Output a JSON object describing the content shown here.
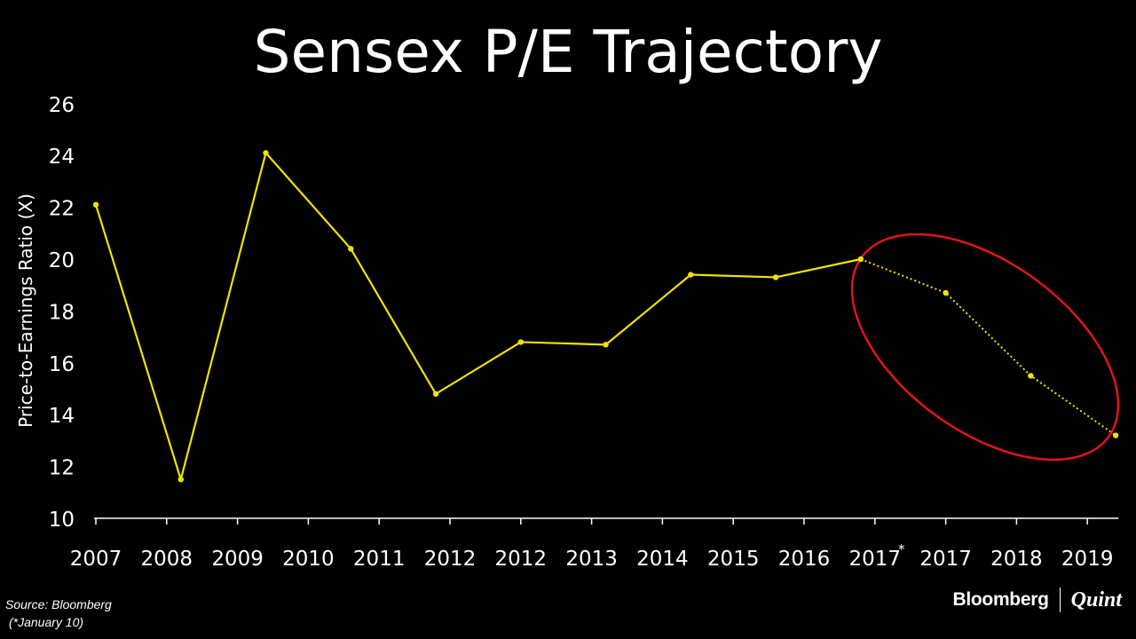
{
  "colors": {
    "background": "#000000",
    "text": "#ffffff",
    "line": "#f2e300",
    "highlight_ellipse": "#e0141c",
    "axis": "#ffffff"
  },
  "chart_data": {
    "type": "line",
    "title": "Sensex P/E Trajectory",
    "ylabel": "Price-to-Earnings Ratio (X)",
    "xlabel": "",
    "categories": [
      "2007",
      "2008",
      "2009",
      "2010",
      "2011",
      "2012",
      "2012",
      "2013",
      "2014",
      "2015",
      "2016",
      "2017",
      "2017",
      "2018",
      "2019"
    ],
    "category_markers": [
      "",
      "",
      "",
      "",
      "",
      "",
      "",
      "",
      "",
      "",
      "",
      "*",
      "",
      "",
      ""
    ],
    "yticks": [
      10,
      12,
      14,
      16,
      18,
      20,
      22,
      24,
      26
    ],
    "ylim": [
      10,
      26
    ],
    "grid": false,
    "series": [
      {
        "style": "solid",
        "points": [
          {
            "x": 0.0,
            "y": 22.1
          },
          {
            "x": 1.2,
            "y": 11.5
          },
          {
            "x": 2.4,
            "y": 24.1
          },
          {
            "x": 3.6,
            "y": 20.4
          },
          {
            "x": 4.8,
            "y": 14.8
          },
          {
            "x": 6.0,
            "y": 16.8
          },
          {
            "x": 7.2,
            "y": 16.7
          },
          {
            "x": 8.4,
            "y": 19.4
          },
          {
            "x": 9.6,
            "y": 19.3
          },
          {
            "x": 10.8,
            "y": 20.0
          }
        ]
      },
      {
        "style": "dotted",
        "points": [
          {
            "x": 10.8,
            "y": 20.0
          },
          {
            "x": 12.0,
            "y": 18.7
          },
          {
            "x": 13.2,
            "y": 15.5
          },
          {
            "x": 14.4,
            "y": 13.2
          }
        ]
      }
    ],
    "annotations": [
      {
        "type": "ellipse",
        "note": "highlights projected values"
      }
    ]
  },
  "footer": {
    "source": "Source: Bloomberg",
    "footnote": "(*January 10)"
  },
  "branding": {
    "left": "Bloomberg",
    "right": "Quint"
  }
}
